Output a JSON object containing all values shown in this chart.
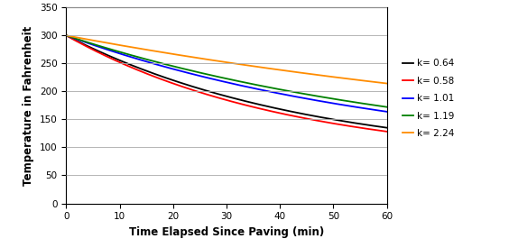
{
  "title": "",
  "xlabel": "Time Elapsed Since Paving (min)",
  "ylabel": "Temperature in Fahrenheit",
  "xlim": [
    0,
    60
  ],
  "ylim": [
    0,
    350
  ],
  "xticks": [
    0,
    10,
    20,
    30,
    40,
    50,
    60
  ],
  "yticks": [
    0,
    50,
    100,
    150,
    200,
    250,
    300,
    350
  ],
  "T0": 300,
  "T_ambient": 75,
  "series": [
    {
      "label": "k= 0.64",
      "color": "#000000",
      "decay": 0.022
    },
    {
      "label": "k= 0.58",
      "color": "#FF0000",
      "decay": 0.024
    },
    {
      "label": "k= 1.01",
      "color": "#0000FF",
      "decay": 0.0155
    },
    {
      "label": "k= 1.19",
      "color": "#008000",
      "decay": 0.014
    },
    {
      "label": "k= 2.24",
      "color": "#FF8C00",
      "decay": 0.008
    }
  ],
  "bg_color": "#FFFFFF",
  "grid_color": "#888888",
  "legend_fontsize": 7.5,
  "axis_fontsize": 8.5,
  "tick_fontsize": 7.5,
  "linewidth": 1.3
}
